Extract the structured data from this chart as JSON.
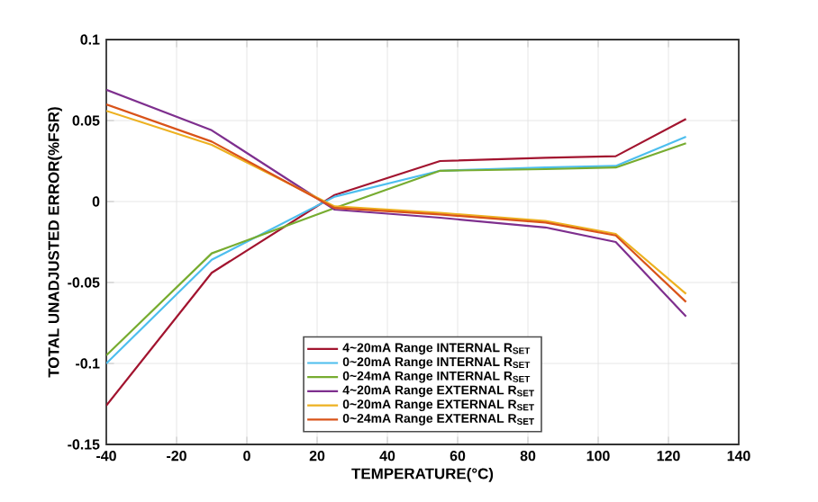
{
  "chart_data": {
    "type": "line",
    "xlabel": "TEMPERATURE(°C)",
    "ylabel": "TOTAL UNADJUSTED ERROR(%FSR)",
    "x": [
      -40,
      -10,
      25,
      55,
      85,
      105,
      125
    ],
    "xlim": [
      -40,
      140
    ],
    "xticks": [
      -40,
      -20,
      0,
      20,
      40,
      60,
      80,
      100,
      120,
      140
    ],
    "ylim": [
      -0.15,
      0.1
    ],
    "yticks": [
      -0.15,
      -0.1,
      -0.05,
      0,
      0.05,
      0.1
    ],
    "grid": true,
    "legend": "bottom",
    "line_style": "solid",
    "series": [
      {
        "name": "4~20mA Range INTERNAL R$_{SET}$",
        "color": "#a2142f",
        "values": [
          -0.126,
          -0.044,
          0.004,
          0.025,
          0.027,
          0.028,
          0.051
        ]
      },
      {
        "name": "0~20mA Range INTERNAL R$_{SET}$",
        "color": "#4dbeee",
        "values": [
          -0.1,
          -0.036,
          0.003,
          0.019,
          0.021,
          0.022,
          0.04
        ]
      },
      {
        "name": "0~24mA Range INTERNAL R$_{SET}$",
        "color": "#77ac30",
        "values": [
          -0.095,
          -0.032,
          -0.004,
          0.019,
          0.02,
          0.021,
          0.036
        ]
      },
      {
        "name": "4~20mA Range EXTERNAL R$_{SET}$",
        "color": "#7e2f8e",
        "values": [
          0.069,
          0.044,
          -0.005,
          -0.01,
          -0.016,
          -0.025,
          -0.071
        ]
      },
      {
        "name": "0~20mA Range EXTERNAL R$_{SET}$",
        "color": "#edb120",
        "values": [
          0.056,
          0.035,
          -0.003,
          -0.007,
          -0.012,
          -0.02,
          -0.057
        ]
      },
      {
        "name": "0~24mA Range EXTERNAL R$_{SET}$",
        "color": "#d95319",
        "values": [
          0.06,
          0.037,
          -0.004,
          -0.008,
          -0.013,
          -0.021,
          -0.062
        ]
      }
    ]
  }
}
